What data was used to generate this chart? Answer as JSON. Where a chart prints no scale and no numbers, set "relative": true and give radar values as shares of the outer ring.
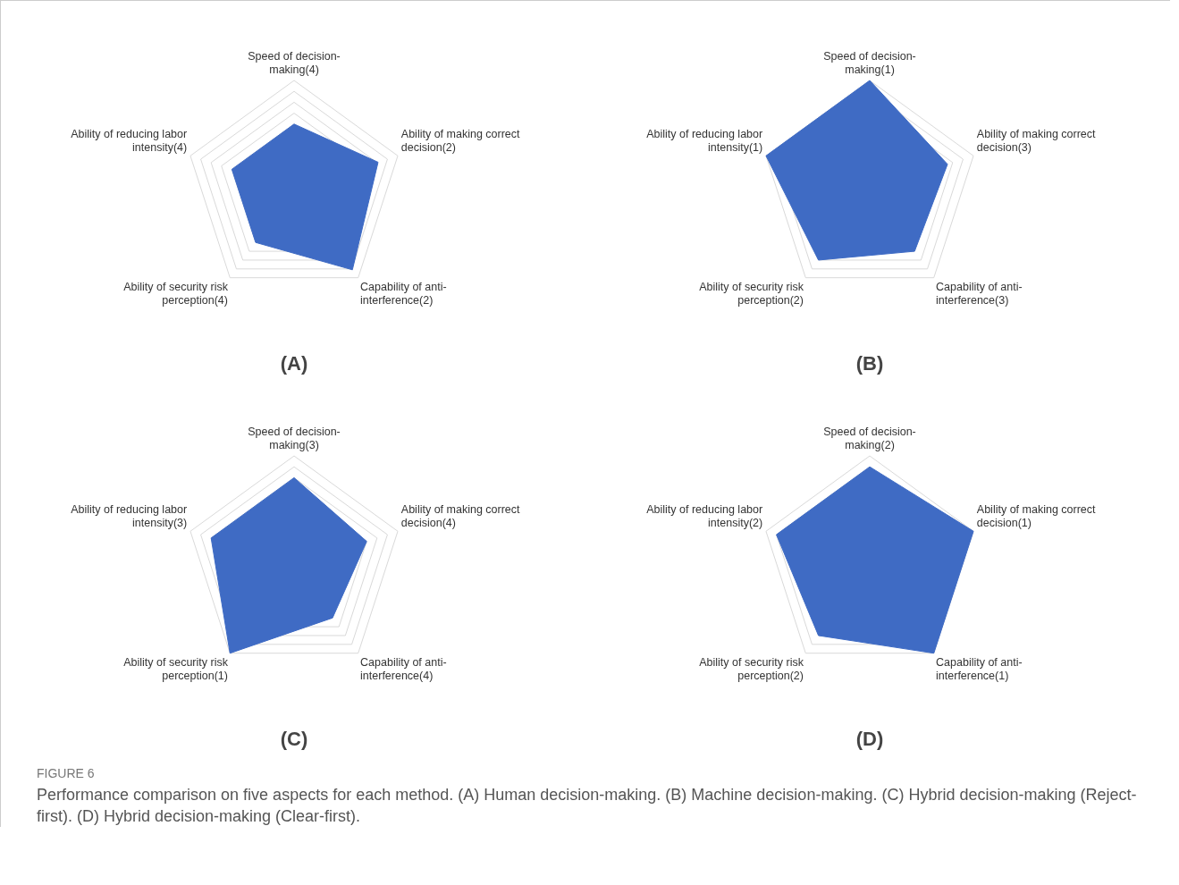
{
  "chart_data": [
    {
      "type": "radar",
      "title": "(A)",
      "relative": true,
      "grid": true,
      "categories": [
        "Speed of decision-making(4)",
        "Ability of making correct decision(2)",
        "Capability of anti-interference(2)",
        "Ability of security risk perception(4)",
        "Ability of reducing labor intensity(4)"
      ],
      "series": [
        {
          "color": "#3f6bc4",
          "values": [
            0.6,
            0.81,
            0.91,
            0.6,
            0.6
          ]
        }
      ]
    },
    {
      "type": "radar",
      "title": "(B)",
      "relative": true,
      "grid": true,
      "categories": [
        "Speed of decision-making(1)",
        "Ability of making correct decision(3)",
        "Capability of anti-interference(3)",
        "Ability of security risk perception(2)",
        "Ability of reducing labor intensity(1)"
      ],
      "series": [
        {
          "color": "#3f6bc4",
          "values": [
            1,
            0.75,
            0.7,
            0.8,
            1
          ]
        }
      ]
    },
    {
      "type": "radar",
      "title": "(C)",
      "relative": true,
      "grid": true,
      "categories": [
        "Speed of decision-making(3)",
        "Ability of making correct decision(4)",
        "Capability of anti-interference(4)",
        "Ability of security risk perception(1)",
        "Ability of reducing labor intensity(3)"
      ],
      "series": [
        {
          "color": "#3f6bc4",
          "values": [
            0.8,
            0.7,
            0.6,
            1,
            0.8
          ]
        }
      ]
    },
    {
      "type": "radar",
      "title": "(D)",
      "relative": true,
      "grid": true,
      "categories": [
        "Speed of decision-making(2)",
        "Ability of making correct decision(1)",
        "Capability of anti-interference(1)",
        "Ability of security risk perception(2)",
        "Ability of reducing labor intensity(2)"
      ],
      "series": [
        {
          "color": "#3f6bc4",
          "values": [
            0.9,
            1,
            1,
            0.8,
            0.9
          ]
        }
      ],
      "annotations": [
        "FIGURE 6",
        "Performance comparison on five aspects for each method. (A) Human decision-making. (B) Machine decision-making. (C) Hybrid decision-making (Reject-first). (D) Hybrid decision-making (Clear-first)."
      ]
    }
  ]
}
